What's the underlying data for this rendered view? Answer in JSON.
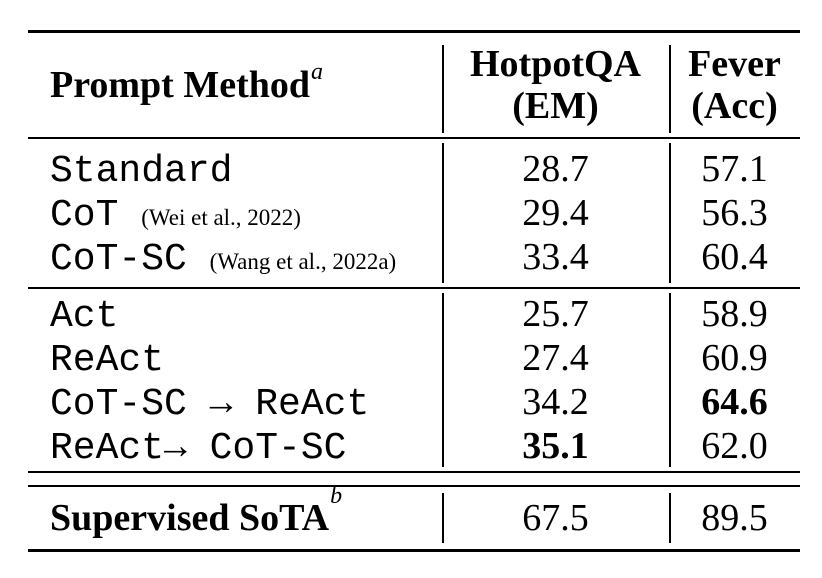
{
  "page": {
    "background": "#ffffff",
    "text_color": "#000000"
  },
  "table": {
    "header": {
      "method_label": "Prompt Method",
      "method_sup": "a",
      "col2_title": "HotpotQA",
      "col2_unit": "(EM)",
      "col3_title": "Fever",
      "col3_unit": "(Acc)"
    },
    "group1": {
      "rows": [
        {
          "method": "Standard",
          "citation": "",
          "hotpotqa": "28.7",
          "fever": "57.1"
        },
        {
          "method": "CoT",
          "citation": "(Wei et al., 2022)",
          "hotpotqa": "29.4",
          "fever": "56.3"
        },
        {
          "method": "CoT-SC",
          "citation": "(Wang et al., 2022a)",
          "hotpotqa": "33.4",
          "fever": "60.4"
        }
      ]
    },
    "group2": {
      "rows": [
        {
          "method": "Act",
          "hotpotqa": "25.7",
          "fever": "58.9"
        },
        {
          "method": "ReAct",
          "hotpotqa": "27.4",
          "fever": "60.9"
        },
        {
          "method": "CoT-SC → ReAct",
          "hotpotqa": "34.2",
          "fever": "64.6",
          "fever_bold": true
        },
        {
          "method": "ReAct→ CoT-SC",
          "hotpotqa": "35.1",
          "fever": "62.0",
          "hotpotqa_bold": true
        }
      ]
    },
    "footer": {
      "label": "Supervised SoTA",
      "sup": "b",
      "hotpotqa": "67.5",
      "fever": "89.5"
    }
  }
}
